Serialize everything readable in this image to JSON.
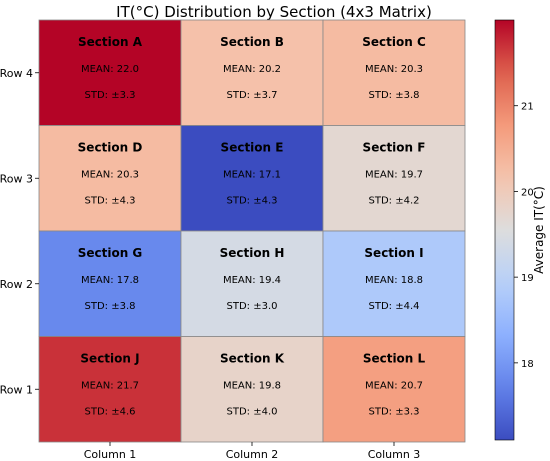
{
  "chart_data": {
    "type": "heatmap",
    "title": "IT(°C) Distribution by Section (4x3 Matrix)",
    "xlabel": "",
    "ylabel": "",
    "columns": [
      "Column 1",
      "Column 2",
      "Column 3"
    ],
    "rows": [
      "Row 4",
      "Row 3",
      "Row 2",
      "Row 1"
    ],
    "mean_prefix": "MEAN: ",
    "std_prefix": "STD: ±",
    "cells": [
      [
        {
          "section": "Section A",
          "mean": 22.0,
          "std": 3.3
        },
        {
          "section": "Section B",
          "mean": 20.2,
          "std": 3.7
        },
        {
          "section": "Section C",
          "mean": 20.3,
          "std": 3.8
        }
      ],
      [
        {
          "section": "Section D",
          "mean": 20.3,
          "std": 4.3
        },
        {
          "section": "Section E",
          "mean": 17.1,
          "std": 4.3
        },
        {
          "section": "Section F",
          "mean": 19.7,
          "std": 4.2
        }
      ],
      [
        {
          "section": "Section G",
          "mean": 17.8,
          "std": 3.8
        },
        {
          "section": "Section H",
          "mean": 19.4,
          "std": 3.0
        },
        {
          "section": "Section I",
          "mean": 18.8,
          "std": 4.4
        }
      ],
      [
        {
          "section": "Section J",
          "mean": 21.7,
          "std": 4.6
        },
        {
          "section": "Section K",
          "mean": 19.8,
          "std": 4.0
        },
        {
          "section": "Section L",
          "mean": 20.7,
          "std": 3.3
        }
      ]
    ],
    "colorbar": {
      "label": "Average IT(°C)",
      "range": [
        17.1,
        22.0
      ],
      "ticks": [
        18,
        19,
        20,
        21
      ],
      "colormap": "coolwarm",
      "low_color": "#3b4cc0",
      "mid_color": "#dddddd",
      "high_color": "#b40426"
    }
  }
}
